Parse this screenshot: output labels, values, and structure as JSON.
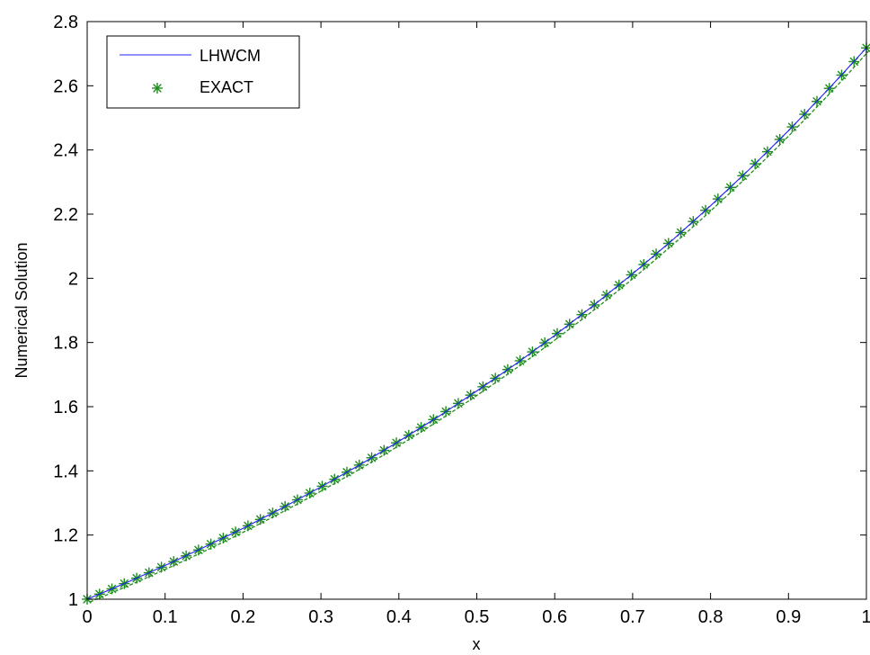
{
  "chart_data": {
    "type": "line",
    "title": "",
    "xlabel": "x",
    "ylabel": "Numerical Solution",
    "xlim": [
      0,
      1
    ],
    "ylim": [
      1,
      2.8
    ],
    "xticks": [
      "0",
      "0.1",
      "0.2",
      "0.3",
      "0.4",
      "0.5",
      "0.6",
      "0.7",
      "0.8",
      "0.9",
      "1"
    ],
    "yticks": [
      "1",
      "1.2",
      "1.4",
      "1.6",
      "1.8",
      "2",
      "2.2",
      "2.4",
      "2.6",
      "2.8"
    ],
    "grid": false,
    "legend_position": "top-left",
    "series": [
      {
        "name": "LHWCM",
        "style": "solid line",
        "color": "#2020ff",
        "x": [
          0,
          0.05,
          0.1,
          0.15,
          0.2,
          0.25,
          0.3,
          0.35,
          0.4,
          0.45,
          0.5,
          0.55,
          0.6,
          0.65,
          0.7,
          0.75,
          0.8,
          0.85,
          0.9,
          0.95,
          1.0
        ],
        "y": [
          1.0,
          1.051,
          1.105,
          1.162,
          1.221,
          1.284,
          1.35,
          1.419,
          1.492,
          1.568,
          1.649,
          1.733,
          1.822,
          1.916,
          2.014,
          2.117,
          2.226,
          2.34,
          2.46,
          2.586,
          2.718
        ]
      },
      {
        "name": "EXACT",
        "style": "dashed line with asterisk markers",
        "color": "#1f8c1f",
        "marker_count": 64,
        "x_range": [
          0,
          1
        ],
        "function_values": {
          "x": [
            0,
            0.1,
            0.2,
            0.3,
            0.4,
            0.5,
            0.6,
            0.7,
            0.8,
            0.9,
            1.0
          ],
          "y": [
            1.0,
            1.105,
            1.221,
            1.35,
            1.492,
            1.649,
            1.822,
            2.014,
            2.226,
            2.46,
            2.718
          ]
        }
      }
    ]
  },
  "legend": {
    "items": [
      "LHWCM",
      "EXACT"
    ]
  }
}
